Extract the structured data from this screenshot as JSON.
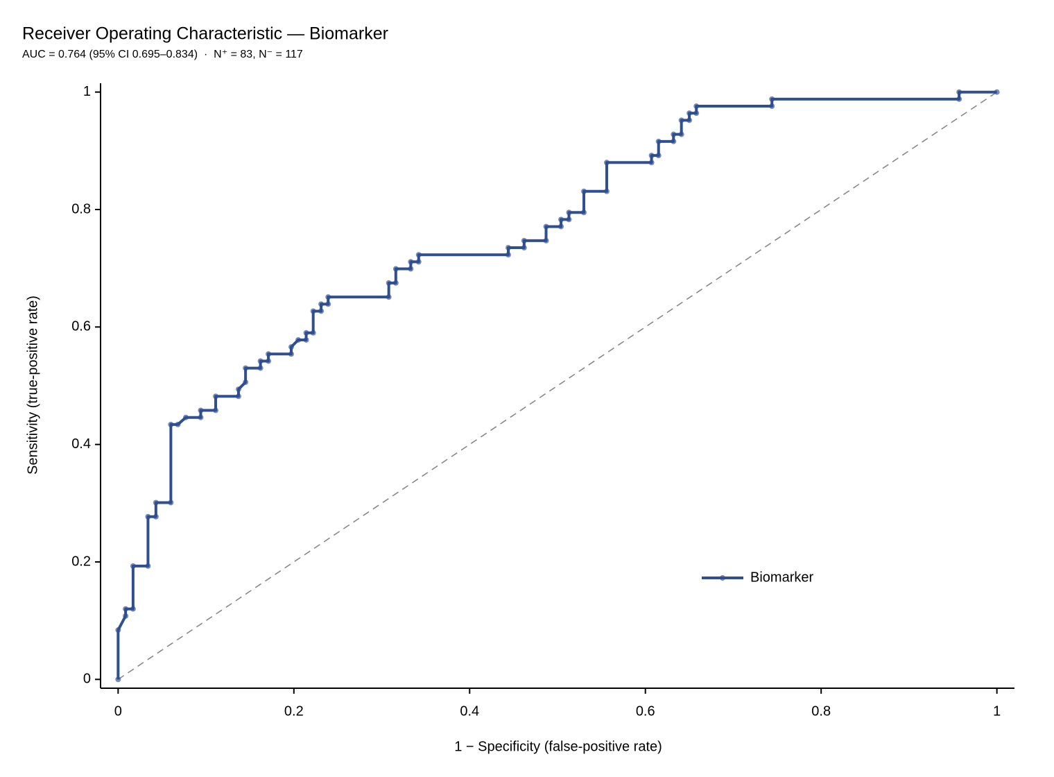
{
  "chart_data": {
    "type": "line",
    "title": "Receiver Operating Characteristic — Biomarker",
    "subtitle": "AUC = 0.764 (95% CI 0.695–0.834)  ·  N⁺ = 83, N⁻ = 117",
    "x_label": "1 − Specificity (false-positive rate)",
    "y_label": "Sensitivity (true-positive rate)",
    "xlim": [
      -0.02,
      1.02
    ],
    "ylim": [
      -0.015,
      1.015
    ],
    "xticks": [
      0,
      0.2,
      0.4,
      0.6,
      0.8,
      1
    ],
    "yticks": [
      0,
      0.2,
      0.4,
      0.6,
      0.8,
      1
    ],
    "legend": "lower right",
    "reference_diagonal": true,
    "x": [
      0,
      0,
      0.0085,
      0.0085,
      0.017,
      0.017,
      0.034,
      0.034,
      0.043,
      0.043,
      0.06,
      0.06,
      0.068,
      0.077,
      0.094,
      0.094,
      0.111,
      0.111,
      0.137,
      0.137,
      0.145,
      0.145,
      0.162,
      0.162,
      0.171,
      0.171,
      0.197,
      0.197,
      0.205,
      0.214,
      0.214,
      0.222,
      0.222,
      0.231,
      0.231,
      0.239,
      0.239,
      0.308,
      0.308,
      0.316,
      0.316,
      0.333,
      0.333,
      0.342,
      0.342,
      0.444,
      0.444,
      0.462,
      0.462,
      0.487,
      0.487,
      0.504,
      0.504,
      0.513,
      0.513,
      0.53,
      0.53,
      0.556,
      0.556,
      0.607,
      0.607,
      0.615,
      0.615,
      0.632,
      0.632,
      0.641,
      0.641,
      0.65,
      0.65,
      0.658,
      0.658,
      0.744,
      0.744,
      0.957,
      0.957,
      1
    ],
    "series": [
      {
        "name": "Biomarker",
        "color": "#2f4f8f",
        "values": [
          0,
          0.084,
          0.108,
          0.12,
          0.12,
          0.193,
          0.193,
          0.277,
          0.277,
          0.301,
          0.301,
          0.434,
          0.434,
          0.446,
          0.446,
          0.458,
          0.458,
          0.482,
          0.482,
          0.494,
          0.506,
          0.53,
          0.53,
          0.542,
          0.542,
          0.554,
          0.554,
          0.566,
          0.578,
          0.578,
          0.59,
          0.59,
          0.627,
          0.627,
          0.639,
          0.639,
          0.651,
          0.651,
          0.675,
          0.675,
          0.699,
          0.699,
          0.711,
          0.711,
          0.723,
          0.723,
          0.735,
          0.735,
          0.747,
          0.747,
          0.771,
          0.771,
          0.783,
          0.783,
          0.795,
          0.795,
          0.831,
          0.831,
          0.88,
          0.88,
          0.892,
          0.892,
          0.916,
          0.916,
          0.928,
          0.928,
          0.952,
          0.952,
          0.964,
          0.964,
          0.976,
          0.976,
          0.988,
          0.988,
          1,
          1
        ]
      }
    ]
  }
}
